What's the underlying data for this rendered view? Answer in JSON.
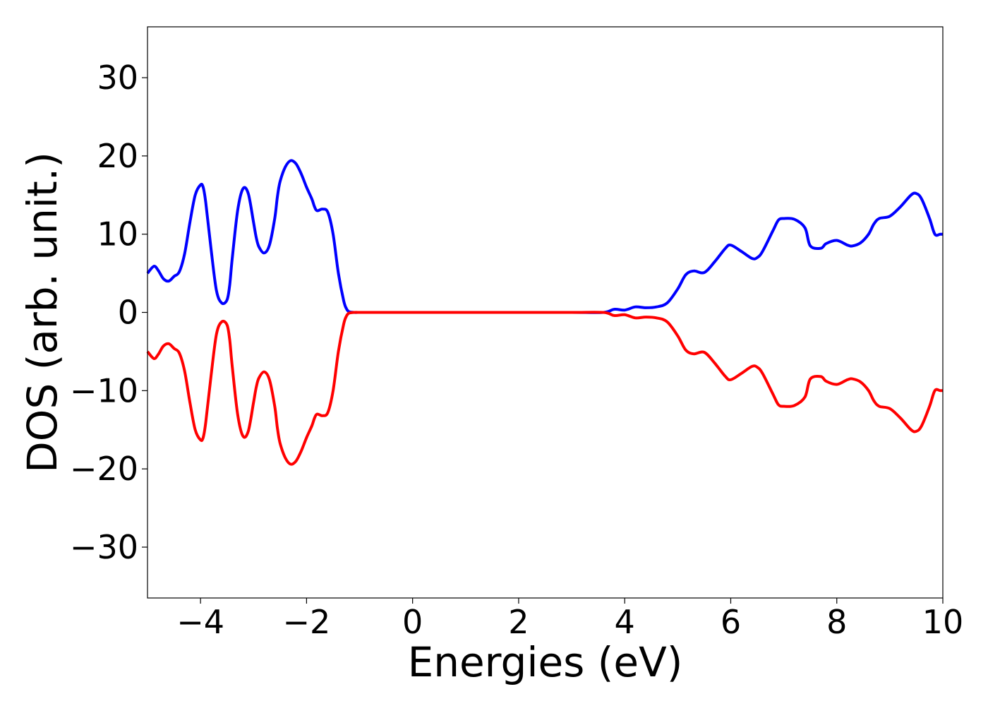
{
  "chart_data": {
    "type": "line",
    "title": "",
    "xlabel": "Energies (eV)",
    "ylabel": "DOS (arb. unit.)",
    "xlim": [
      -5,
      10
    ],
    "ylim": [
      -36.5,
      36.5
    ],
    "xticks": [
      -4,
      -2,
      0,
      2,
      4,
      6,
      8,
      10
    ],
    "xtick_labels": [
      "−4",
      "−2",
      "0",
      "2",
      "4",
      "6",
      "8",
      "10"
    ],
    "yticks": [
      30,
      20,
      10,
      0,
      -10,
      -20,
      -30
    ],
    "ytick_labels": [
      "30",
      "20",
      "10",
      "0",
      "−10",
      "−20",
      "−30"
    ],
    "grid": false,
    "legend": null,
    "series": [
      {
        "color": "#0000ff",
        "x": [
          -5.0,
          -4.88,
          -4.8,
          -4.7,
          -4.6,
          -4.5,
          -4.4,
          -4.3,
          -4.2,
          -4.1,
          -4.0,
          -3.95,
          -3.9,
          -3.8,
          -3.7,
          -3.6,
          -3.5,
          -3.45,
          -3.4,
          -3.3,
          -3.2,
          -3.1,
          -3.0,
          -2.95,
          -2.9,
          -2.8,
          -2.7,
          -2.6,
          -2.55,
          -2.5,
          -2.4,
          -2.3,
          -2.2,
          -2.1,
          -2.0,
          -1.9,
          -1.85,
          -1.8,
          -1.7,
          -1.6,
          -1.5,
          -1.4,
          -1.3,
          -1.25,
          -1.2,
          -1.1,
          -1.0,
          -0.9,
          -0.8,
          -0.7,
          -0.6,
          -0.5,
          -0.4,
          0.0,
          1.0,
          2.0,
          3.0,
          3.6,
          3.8,
          4.0,
          4.2,
          4.4,
          4.6,
          4.8,
          5.0,
          5.15,
          5.3,
          5.5,
          5.7,
          5.9,
          6.0,
          6.2,
          6.4,
          6.5,
          6.6,
          6.8,
          6.9,
          7.0,
          7.2,
          7.4,
          7.5,
          7.7,
          7.8,
          8.0,
          8.2,
          8.3,
          8.45,
          8.6,
          8.7,
          8.8,
          9.0,
          9.2,
          9.4,
          9.5,
          9.6,
          9.75,
          9.85,
          9.95,
          10.0
        ],
        "values": [
          5.0,
          5.9,
          5.4,
          4.3,
          4.0,
          4.6,
          5.2,
          7.5,
          11.5,
          15.0,
          16.3,
          16.0,
          14.0,
          8.0,
          2.8,
          1.2,
          1.6,
          3.5,
          7.0,
          13.0,
          15.8,
          15.2,
          11.5,
          9.6,
          8.4,
          7.6,
          8.6,
          12.0,
          14.8,
          16.7,
          18.6,
          19.4,
          19.0,
          17.7,
          16.0,
          14.5,
          13.5,
          13.0,
          13.2,
          12.8,
          10.0,
          5.0,
          1.5,
          0.5,
          0.1,
          0.0,
          0.0,
          0.0,
          0.0,
          0.0,
          0.0,
          0.0,
          0.0,
          0.0,
          0.0,
          0.0,
          0.0,
          0.0,
          0.4,
          0.3,
          0.7,
          0.6,
          0.7,
          1.2,
          3.0,
          4.8,
          5.3,
          5.1,
          6.5,
          8.2,
          8.6,
          7.8,
          6.9,
          7.0,
          7.8,
          10.5,
          11.8,
          12.0,
          11.9,
          10.8,
          8.5,
          8.2,
          8.8,
          9.2,
          8.6,
          8.5,
          8.9,
          10.0,
          11.3,
          12.0,
          12.3,
          13.5,
          15.0,
          15.2,
          14.5,
          12.0,
          10.0,
          10.0,
          10.0
        ]
      },
      {
        "color": "#ff0000",
        "x": [
          -5.0,
          -4.88,
          -4.8,
          -4.7,
          -4.6,
          -4.5,
          -4.4,
          -4.3,
          -4.2,
          -4.1,
          -4.0,
          -3.95,
          -3.9,
          -3.8,
          -3.7,
          -3.6,
          -3.5,
          -3.45,
          -3.4,
          -3.3,
          -3.2,
          -3.1,
          -3.0,
          -2.95,
          -2.9,
          -2.8,
          -2.7,
          -2.6,
          -2.55,
          -2.5,
          -2.4,
          -2.3,
          -2.2,
          -2.1,
          -2.0,
          -1.9,
          -1.85,
          -1.8,
          -1.7,
          -1.6,
          -1.5,
          -1.4,
          -1.3,
          -1.25,
          -1.2,
          -1.1,
          -1.0,
          -0.9,
          -0.8,
          -0.7,
          -0.6,
          -0.5,
          -0.4,
          0.0,
          1.0,
          2.0,
          3.0,
          3.6,
          3.8,
          4.0,
          4.2,
          4.4,
          4.6,
          4.8,
          5.0,
          5.15,
          5.3,
          5.5,
          5.7,
          5.9,
          6.0,
          6.2,
          6.4,
          6.5,
          6.6,
          6.8,
          6.9,
          7.0,
          7.2,
          7.4,
          7.5,
          7.7,
          7.8,
          8.0,
          8.2,
          8.3,
          8.45,
          8.6,
          8.7,
          8.8,
          9.0,
          9.2,
          9.4,
          9.5,
          9.6,
          9.75,
          9.85,
          9.95,
          10.0
        ],
        "values": [
          -5.0,
          -5.9,
          -5.4,
          -4.3,
          -4.0,
          -4.6,
          -5.2,
          -7.5,
          -11.5,
          -15.0,
          -16.3,
          -16.0,
          -14.0,
          -8.0,
          -2.8,
          -1.2,
          -1.6,
          -3.5,
          -7.0,
          -13.0,
          -15.8,
          -15.2,
          -11.5,
          -9.6,
          -8.4,
          -7.6,
          -8.6,
          -12.0,
          -14.8,
          -16.7,
          -18.6,
          -19.4,
          -19.0,
          -17.7,
          -16.0,
          -14.5,
          -13.5,
          -13.0,
          -13.2,
          -12.8,
          -10.0,
          -5.0,
          -1.5,
          -0.5,
          -0.1,
          0.0,
          0.0,
          0.0,
          0.0,
          0.0,
          0.0,
          0.0,
          0.0,
          0.0,
          0.0,
          0.0,
          0.0,
          0.0,
          -0.4,
          -0.3,
          -0.7,
          -0.6,
          -0.7,
          -1.2,
          -3.0,
          -4.8,
          -5.3,
          -5.1,
          -6.5,
          -8.2,
          -8.6,
          -7.8,
          -6.9,
          -7.0,
          -7.8,
          -10.5,
          -11.8,
          -12.0,
          -11.9,
          -10.8,
          -8.5,
          -8.2,
          -8.8,
          -9.2,
          -8.6,
          -8.5,
          -8.9,
          -10.0,
          -11.3,
          -12.0,
          -12.3,
          -13.5,
          -15.0,
          -15.2,
          -14.5,
          -12.0,
          -10.0,
          -10.0,
          -10.0
        ]
      }
    ]
  }
}
